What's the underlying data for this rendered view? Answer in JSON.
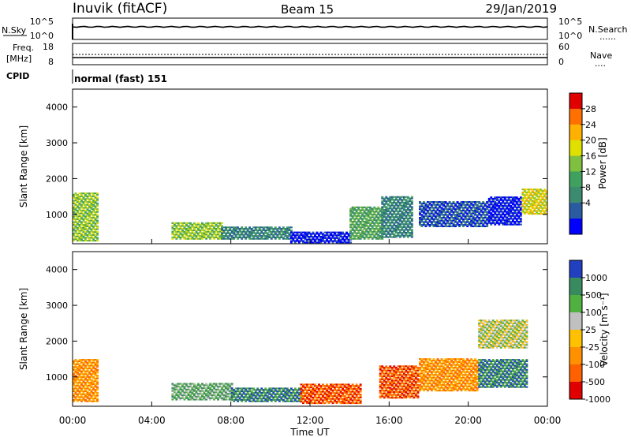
{
  "header": {
    "station": "Inuvik (fitACF)",
    "beam": "Beam 15",
    "date": "29/Jan/2019"
  },
  "sky_panel": {
    "left_label": "N.Sky",
    "right_label": "N.Search",
    "ticks_left": [
      "10^5",
      "10^0"
    ],
    "ticks_right": [
      "10^5",
      "10^0"
    ],
    "right_legend_line": "......"
  },
  "freq_panel": {
    "left_label_line1": "Freq.",
    "left_label_line2": "[MHz]",
    "right_label": "Nave",
    "ticks_left": [
      "18",
      "8"
    ],
    "ticks_right": [
      "60",
      "0"
    ],
    "right_legend_line": "...."
  },
  "cpid": {
    "label": "CPID",
    "value": "normal (fast) 151"
  },
  "chart_data": [
    {
      "type": "heatmap",
      "name": "power",
      "ylabel": "Slant Range [km]",
      "y_ticks": [
        "1000",
        "2000",
        "3000",
        "4000"
      ],
      "y_tick_values": [
        1000,
        2000,
        3000,
        4000
      ],
      "ylim": [
        180,
        4500
      ],
      "colorbar_label": "Power [dB]",
      "colorbar_ticks": [
        "28",
        "24",
        "20",
        "16",
        "12",
        "8",
        "4"
      ],
      "colorbar_colors": [
        "#e00000",
        "#ff7000",
        "#ffb000",
        "#e0e000",
        "#80c040",
        "#40a060",
        "#3c8a70",
        "#2a5aa0",
        "#0000ff"
      ],
      "regions": [
        {
          "x0": 0.0,
          "x1": 1.3,
          "y0": 250,
          "y1": 1600,
          "level": 4
        },
        {
          "x0": 5.0,
          "x1": 7.5,
          "y0": 300,
          "y1": 750,
          "level": 4
        },
        {
          "x0": 7.5,
          "x1": 11.0,
          "y0": 300,
          "y1": 650,
          "level": 6
        },
        {
          "x0": 11.0,
          "x1": 14.0,
          "y0": 200,
          "y1": 500,
          "level": 8
        },
        {
          "x0": 14.0,
          "x1": 15.6,
          "y0": 300,
          "y1": 1200,
          "level": 5
        },
        {
          "x0": 15.6,
          "x1": 17.2,
          "y0": 350,
          "y1": 1500,
          "level": 6
        },
        {
          "x0": 17.5,
          "x1": 21.0,
          "y0": 650,
          "y1": 1350,
          "level": 7
        },
        {
          "x0": 21.0,
          "x1": 22.7,
          "y0": 700,
          "y1": 1500,
          "level": 8
        },
        {
          "x0": 22.7,
          "x1": 24.0,
          "y0": 1000,
          "y1": 1700,
          "level": 3
        }
      ]
    },
    {
      "type": "heatmap",
      "name": "velocity",
      "ylabel": "Slant Range [km]",
      "y_ticks": [
        "1000",
        "2000",
        "3000",
        "4000"
      ],
      "y_tick_values": [
        1000,
        2000,
        3000,
        4000
      ],
      "ylim": [
        180,
        4500
      ],
      "colorbar_label": "Velocity [m s⁻¹]",
      "colorbar_ticks": [
        "1000",
        "500",
        "100",
        "25",
        "-25",
        "-100",
        "-500",
        "-1000"
      ],
      "colorbar_colors": [
        "#2040c0",
        "#3a8a60",
        "#50b040",
        "#c0c0c0",
        "#ffc000",
        "#ff9000",
        "#ff6000",
        "#e00000"
      ],
      "regions": [
        {
          "x0": 0.0,
          "x1": 1.3,
          "y0": 300,
          "y1": 1500,
          "level": 5
        },
        {
          "x0": 5.0,
          "x1": 8.0,
          "y0": 350,
          "y1": 800,
          "level": 2
        },
        {
          "x0": 8.0,
          "x1": 11.5,
          "y0": 300,
          "y1": 700,
          "level": 1
        },
        {
          "x0": 11.5,
          "x1": 14.5,
          "y0": 250,
          "y1": 800,
          "level": 6
        },
        {
          "x0": 15.5,
          "x1": 17.5,
          "y0": 400,
          "y1": 1300,
          "level": 6
        },
        {
          "x0": 17.5,
          "x1": 20.5,
          "y0": 600,
          "y1": 1500,
          "level": 5
        },
        {
          "x0": 20.5,
          "x1": 23.0,
          "y0": 700,
          "y1": 1500,
          "level": 1
        },
        {
          "x0": 20.5,
          "x1": 23.0,
          "y0": 1800,
          "y1": 2600,
          "level": 3
        }
      ]
    }
  ],
  "x_axis": {
    "ticks": [
      "00:00",
      "04:00",
      "08:00",
      "12:00",
      "16:00",
      "20:00",
      "00:00"
    ],
    "tick_hours": [
      0,
      4,
      8,
      12,
      16,
      20,
      24
    ],
    "label": "Time UT"
  }
}
